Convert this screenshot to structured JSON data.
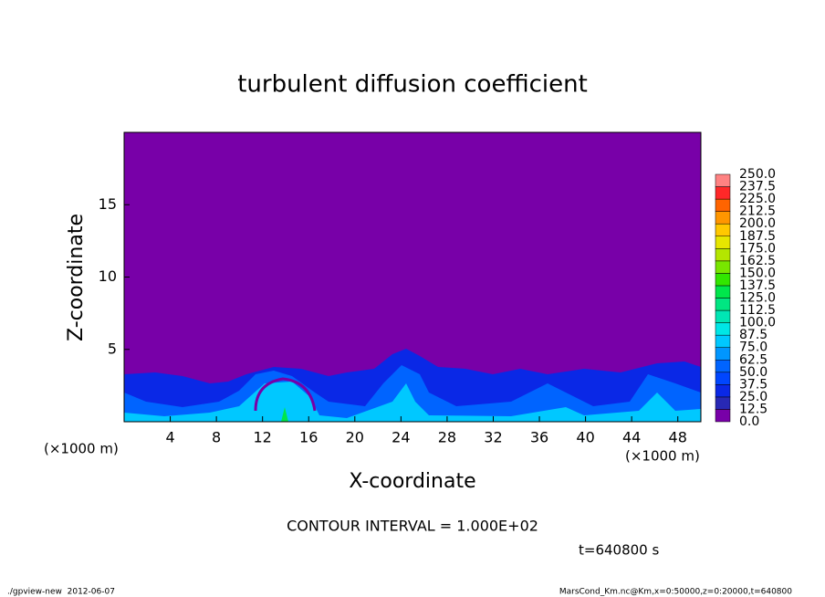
{
  "chart_data": {
    "type": "contour",
    "title": "turbulent diffusion coefficient",
    "xlabel": "X-coordinate",
    "ylabel": "Z-coordinate",
    "unit_label": "(×1000 m)",
    "xlim": [
      0,
      50
    ],
    "xticks": [
      4,
      8,
      12,
      16,
      20,
      24,
      28,
      32,
      36,
      40,
      44,
      48
    ],
    "ylim": [
      0,
      20
    ],
    "yticks": [
      5,
      10,
      15
    ],
    "colorbar": {
      "levels": [
        {
          "value": 0,
          "label": "0.0"
        },
        12.5,
        {
          "value": 25,
          "label": "25.0"
        },
        37.5,
        {
          "value": 50,
          "label": "50.0"
        },
        62.5,
        {
          "value": 75,
          "label": "75.0"
        },
        87.5,
        {
          "value": 100,
          "label": "100.0"
        },
        112.5,
        {
          "value": 125,
          "label": "125.0"
        },
        137.5,
        {
          "value": 150,
          "label": "150.0"
        },
        162.5,
        {
          "value": 175,
          "label": "175.0"
        },
        187.5,
        {
          "value": 200,
          "label": "200.0"
        },
        212.5,
        {
          "value": 225,
          "label": "225.0"
        },
        237.5,
        {
          "value": 250,
          "label": "250.0"
        }
      ],
      "colors": [
        "#7800a8",
        "#2828b4",
        "#0a28e6",
        "#0046ff",
        "#0064ff",
        "#0096ff",
        "#00c8ff",
        "#00e6e6",
        "#00e6b4",
        "#00e682",
        "#00e64b",
        "#32e600",
        "#78e600",
        "#b4e600",
        "#e6e600",
        "#ffc800",
        "#ff9600",
        "#ff6400",
        "#ff2828",
        "#ff8282"
      ]
    },
    "contour_interval": "CONTOUR INTERVAL = 1.000E+02",
    "time_label": "t=640800 s",
    "footer_left": "./gpview-new  2012-06-07",
    "footer_right": "MarsCond_Km.nc@Km,x=0:50000,z=0:20000,t=640800"
  }
}
